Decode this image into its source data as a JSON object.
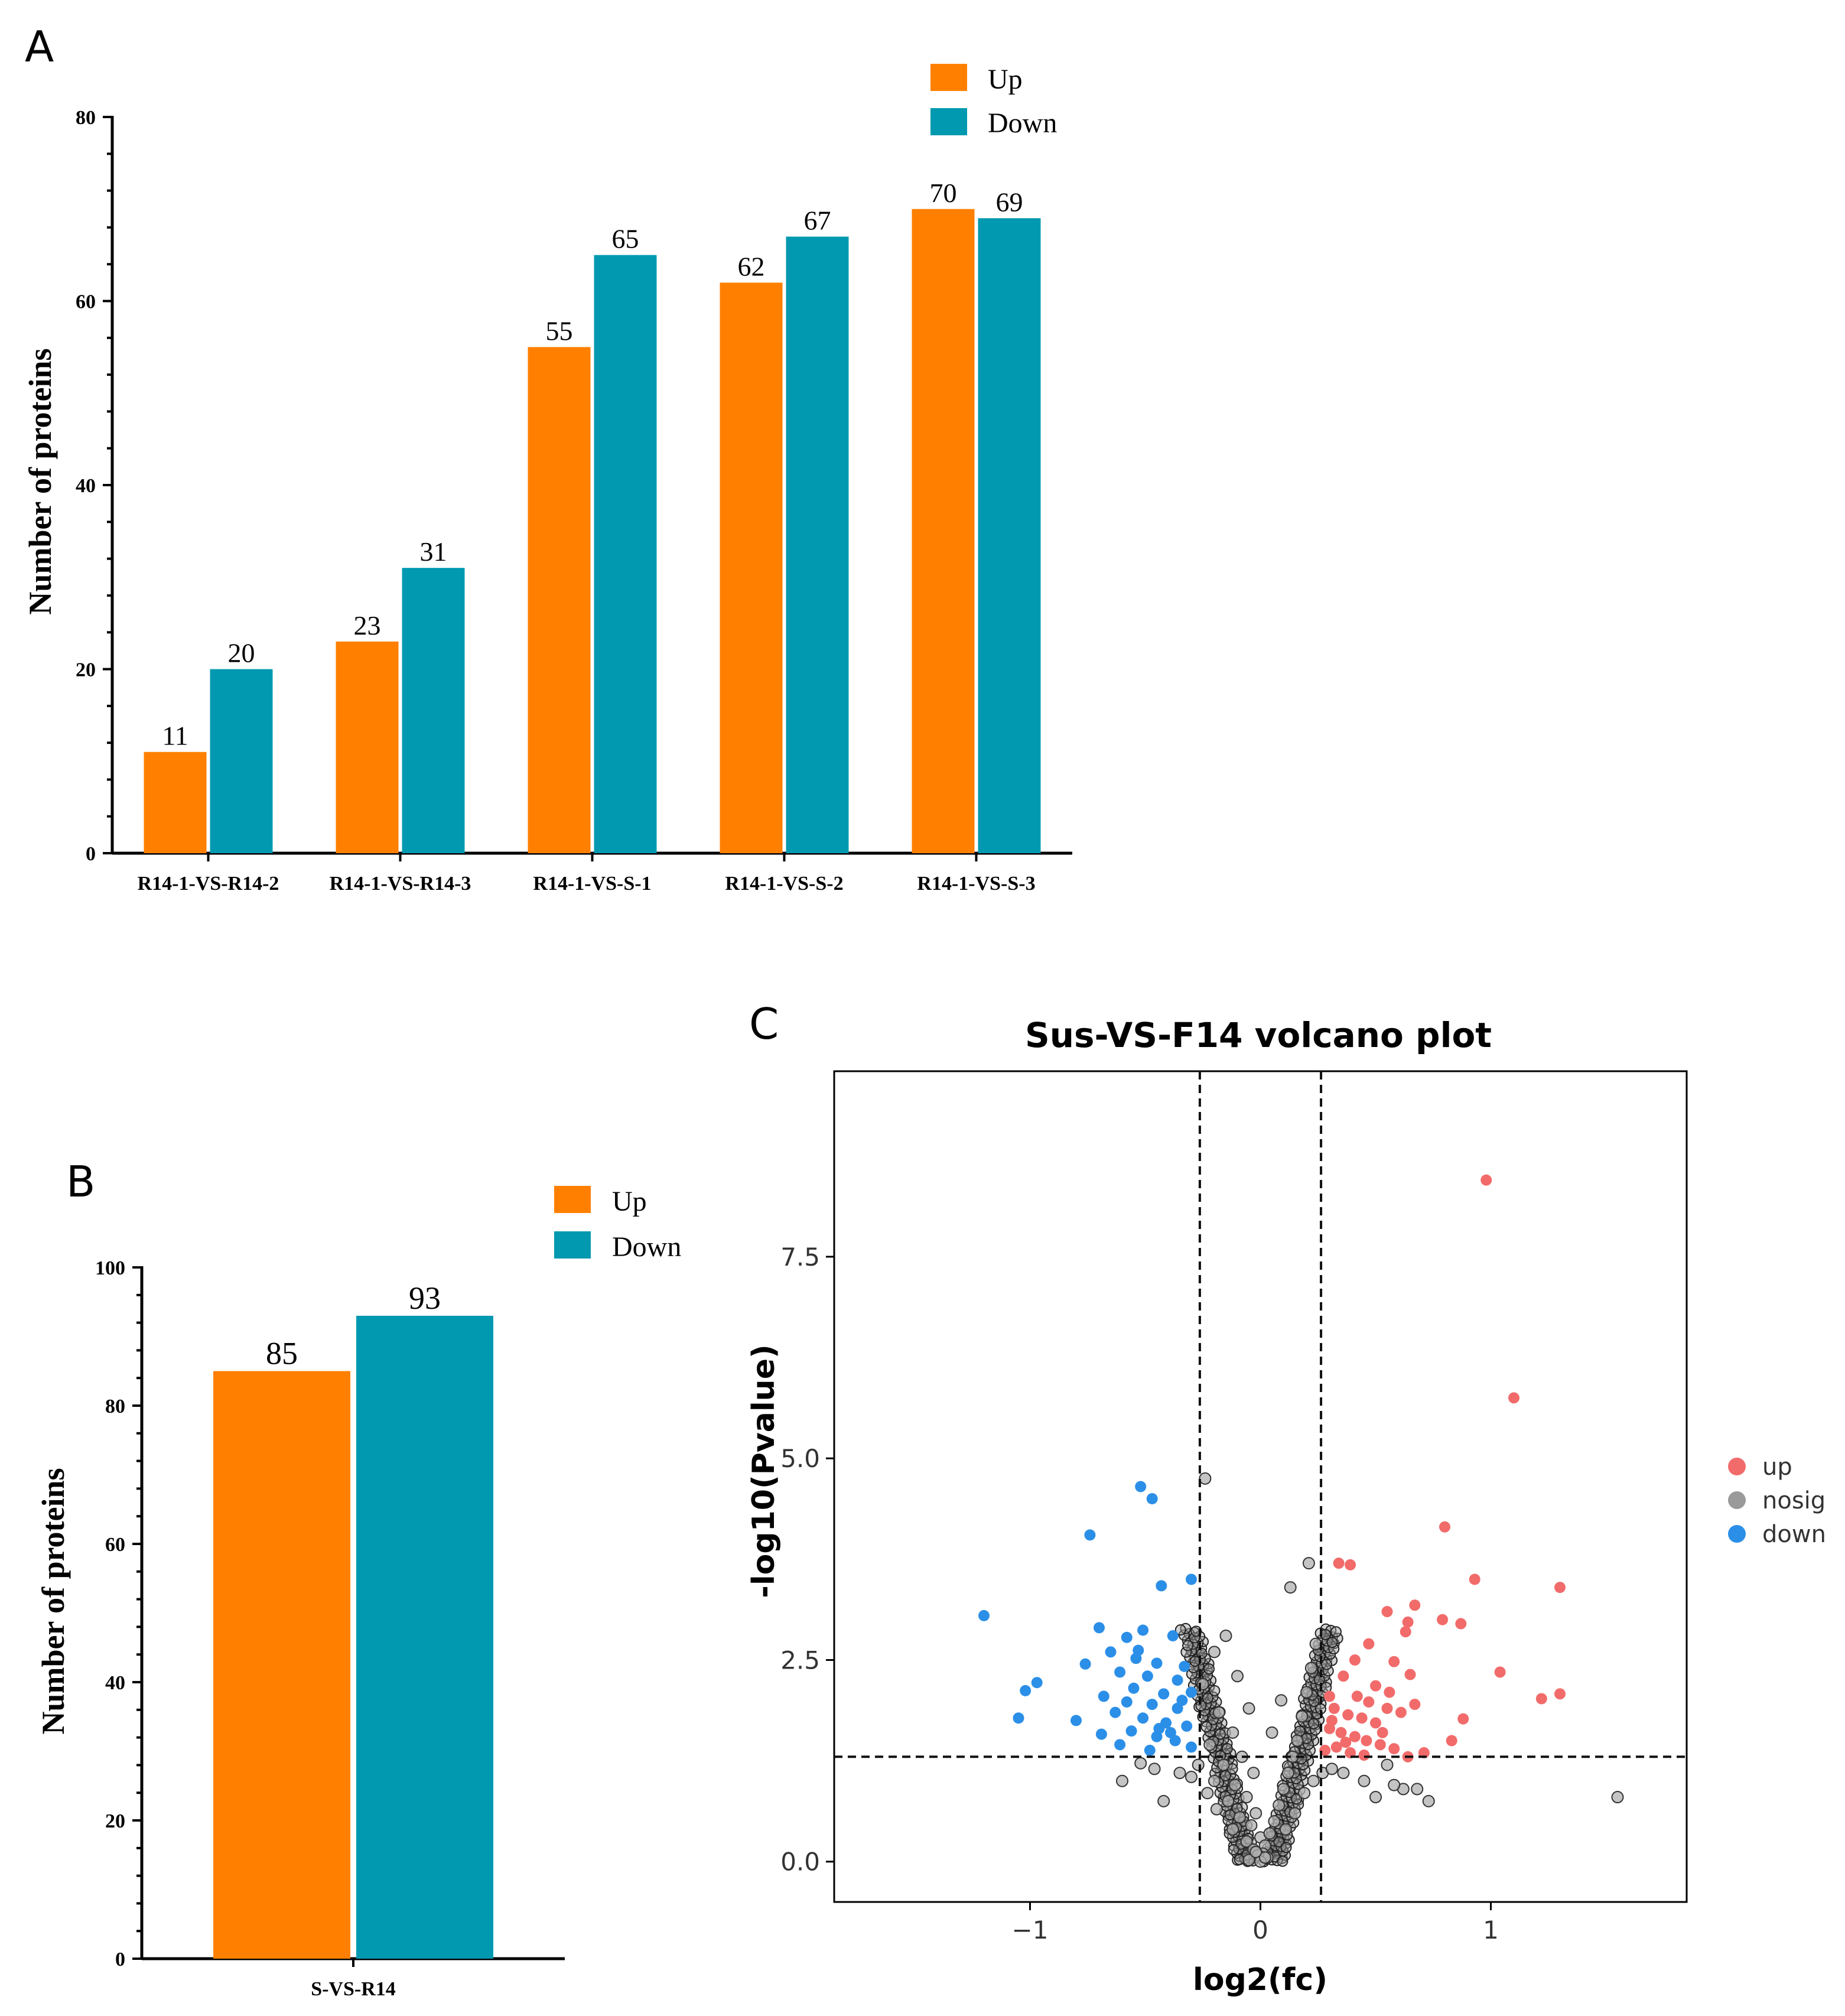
{
  "colors": {
    "up": "#FF8000",
    "down": "#0099B0",
    "volcano_up": "#F26B6B",
    "volcano_down": "#2B8FE8",
    "volcano_nosig": "#9A9A9A"
  },
  "chart_data": [
    {
      "panel": "A",
      "type": "bar",
      "title": "",
      "xlabel": "",
      "ylabel": "Number of proteins",
      "ylim": [
        0,
        80
      ],
      "yticks": [
        0,
        20,
        40,
        60,
        80
      ],
      "categories": [
        "R14-1-VS-R14-2",
        "R14-1-VS-R14-3",
        "R14-1-VS-S-1",
        "R14-1-VS-S-2",
        "R14-1-VS-S-3"
      ],
      "series": [
        {
          "name": "Up",
          "values": [
            11,
            23,
            55,
            62,
            70
          ]
        },
        {
          "name": "Down",
          "values": [
            20,
            31,
            65,
            67,
            69
          ]
        }
      ],
      "legend": "top-right"
    },
    {
      "panel": "B",
      "type": "bar",
      "title": "",
      "xlabel": "",
      "ylabel": "Number of proteins",
      "ylim": [
        0,
        100
      ],
      "yticks": [
        0,
        20,
        40,
        60,
        80,
        100
      ],
      "categories": [
        "S-VS-R14"
      ],
      "series": [
        {
          "name": "Up",
          "values": [
            85
          ]
        },
        {
          "name": "Down",
          "values": [
            93
          ]
        }
      ],
      "legend": "top-right"
    },
    {
      "panel": "C",
      "type": "scatter",
      "title": "Sus-VS-F14 volcano plot",
      "xlabel": "log2(fc)",
      "ylabel": "-log10(Pvalue)",
      "xlim": [
        -1.85,
        1.85
      ],
      "ylim": [
        -0.5,
        9.8
      ],
      "xticks": [
        -1,
        0,
        1
      ],
      "xtick_labels": [
        "−1",
        "0",
        "1"
      ],
      "yticks": [
        0.0,
        2.5,
        5.0,
        7.5
      ],
      "ytick_labels": [
        "0.0",
        "2.5",
        "5.0",
        "7.5"
      ],
      "thresholds": {
        "x": [
          -0.263,
          0.263
        ],
        "y": 1.3
      },
      "legend_entries": [
        "up",
        "nosig",
        "down"
      ],
      "legend": "right",
      "series": [
        {
          "name": "up",
          "points": [
            [
              0.98,
              8.45
            ],
            [
              1.1,
              5.75
            ],
            [
              0.8,
              4.15
            ],
            [
              0.34,
              3.7
            ],
            [
              0.39,
              3.68
            ],
            [
              0.93,
              3.5
            ],
            [
              1.3,
              3.4
            ],
            [
              0.67,
              3.18
            ],
            [
              0.55,
              3.1
            ],
            [
              0.64,
              2.97
            ],
            [
              0.79,
              3.0
            ],
            [
              0.87,
              2.95
            ],
            [
              0.63,
              2.85
            ],
            [
              0.47,
              2.7
            ],
            [
              0.41,
              2.5
            ],
            [
              0.58,
              2.48
            ],
            [
              0.65,
              2.32
            ],
            [
              1.04,
              2.35
            ],
            [
              0.36,
              2.3
            ],
            [
              0.5,
              2.18
            ],
            [
              0.56,
              2.1
            ],
            [
              1.3,
              2.08
            ],
            [
              0.3,
              2.05
            ],
            [
              0.42,
              2.05
            ],
            [
              0.47,
              1.98
            ],
            [
              1.22,
              2.02
            ],
            [
              0.67,
              1.95
            ],
            [
              0.55,
              1.9
            ],
            [
              0.61,
              1.85
            ],
            [
              0.32,
              1.9
            ],
            [
              0.38,
              1.82
            ],
            [
              0.44,
              1.78
            ],
            [
              0.88,
              1.77
            ],
            [
              0.5,
              1.72
            ],
            [
              0.3,
              1.65
            ],
            [
              0.35,
              1.6
            ],
            [
              0.41,
              1.55
            ],
            [
              0.46,
              1.5
            ],
            [
              0.52,
              1.45
            ],
            [
              0.58,
              1.4
            ],
            [
              0.71,
              1.35
            ],
            [
              0.83,
              1.5
            ],
            [
              0.64,
              1.3
            ],
            [
              0.33,
              1.42
            ],
            [
              0.39,
              1.35
            ],
            [
              0.45,
              1.32
            ],
            [
              0.28,
              1.38
            ],
            [
              0.53,
              1.6
            ],
            [
              0.31,
              1.75
            ],
            [
              0.37,
              1.48
            ]
          ]
        },
        {
          "name": "down",
          "points": [
            [
              -0.52,
              4.65
            ],
            [
              -0.47,
              4.5
            ],
            [
              -0.74,
              4.05
            ],
            [
              -0.3,
              3.5
            ],
            [
              -0.43,
              3.42
            ],
            [
              -1.2,
              3.05
            ],
            [
              -0.7,
              2.9
            ],
            [
              -0.51,
              2.87
            ],
            [
              -0.58,
              2.78
            ],
            [
              -0.38,
              2.8
            ],
            [
              -0.65,
              2.6
            ],
            [
              -0.54,
              2.52
            ],
            [
              -0.45,
              2.46
            ],
            [
              -0.76,
              2.45
            ],
            [
              -0.33,
              2.42
            ],
            [
              -0.61,
              2.35
            ],
            [
              -0.49,
              2.3
            ],
            [
              -0.36,
              2.25
            ],
            [
              -0.97,
              2.22
            ],
            [
              -1.02,
              2.12
            ],
            [
              -0.55,
              2.15
            ],
            [
              -0.68,
              2.05
            ],
            [
              -0.42,
              2.08
            ],
            [
              -0.3,
              2.1
            ],
            [
              -0.58,
              1.98
            ],
            [
              -0.47,
              1.95
            ],
            [
              -0.36,
              1.9
            ],
            [
              -0.63,
              1.85
            ],
            [
              -0.51,
              1.78
            ],
            [
              -1.05,
              1.78
            ],
            [
              -0.8,
              1.75
            ],
            [
              -0.41,
              1.72
            ],
            [
              -0.32,
              1.68
            ],
            [
              -0.56,
              1.62
            ],
            [
              -0.69,
              1.58
            ],
            [
              -0.45,
              1.55
            ],
            [
              -0.37,
              1.5
            ],
            [
              -0.61,
              1.45
            ],
            [
              -0.3,
              1.42
            ],
            [
              -0.48,
              1.38
            ],
            [
              -0.53,
              2.62
            ],
            [
              -0.44,
              1.65
            ],
            [
              -0.34,
              2.0
            ],
            [
              -0.39,
              1.6
            ]
          ]
        },
        {
          "name": "nosig",
          "points": [
            [
              -0.24,
              4.75
            ],
            [
              -0.15,
              2.8
            ],
            [
              -0.2,
              2.6
            ],
            [
              -0.1,
              2.3
            ],
            [
              -0.25,
              2.2
            ],
            [
              -0.05,
              1.9
            ],
            [
              -0.18,
              1.85
            ],
            [
              -0.12,
              1.6
            ],
            [
              -0.22,
              1.45
            ],
            [
              -0.08,
              1.3
            ],
            [
              -0.16,
              1.2
            ],
            [
              -0.03,
              1.1
            ],
            [
              -0.2,
              1.0
            ],
            [
              -0.11,
              0.95
            ],
            [
              -0.06,
              0.8
            ],
            [
              -0.14,
              0.75
            ],
            [
              -0.02,
              0.6
            ],
            [
              -0.09,
              0.55
            ],
            [
              -0.04,
              0.45
            ],
            [
              -0.12,
              0.4
            ],
            [
              0.0,
              0.3
            ],
            [
              -0.06,
              0.25
            ],
            [
              0.02,
              0.2
            ],
            [
              -0.03,
              0.15
            ],
            [
              0.01,
              0.1
            ],
            [
              0.03,
              0.05
            ],
            [
              -0.01,
              0.08
            ],
            [
              0.04,
              0.35
            ],
            [
              0.06,
              0.5
            ],
            [
              0.08,
              0.7
            ],
            [
              0.1,
              0.9
            ],
            [
              0.12,
              1.1
            ],
            [
              0.14,
              1.3
            ],
            [
              0.16,
              1.5
            ],
            [
              0.18,
              1.8
            ],
            [
              0.2,
              2.1
            ],
            [
              0.22,
              2.4
            ],
            [
              0.24,
              2.7
            ],
            [
              0.13,
              3.4
            ],
            [
              0.21,
              3.7
            ],
            [
              0.09,
              2.0
            ],
            [
              0.05,
              1.6
            ],
            [
              0.15,
              0.6
            ],
            [
              0.19,
              0.85
            ],
            [
              0.23,
              1.0
            ],
            [
              0.11,
              0.4
            ],
            [
              -0.19,
              0.65
            ],
            [
              -0.23,
              0.85
            ],
            [
              -0.27,
              1.2
            ],
            [
              0.27,
              1.1
            ],
            [
              -0.3,
              1.05
            ],
            [
              0.31,
              1.15
            ],
            [
              -0.35,
              1.1
            ],
            [
              0.36,
              1.1
            ],
            [
              -0.52,
              1.22
            ],
            [
              -0.46,
              1.15
            ],
            [
              -0.6,
              1.0
            ],
            [
              -0.42,
              0.75
            ],
            [
              0.45,
              1.0
            ],
            [
              0.5,
              0.8
            ],
            [
              0.62,
              0.9
            ],
            [
              0.58,
              0.95
            ],
            [
              0.68,
              0.9
            ],
            [
              0.73,
              0.75
            ],
            [
              1.55,
              0.8
            ],
            [
              0.55,
              1.2
            ],
            [
              -0.05,
              0.02
            ],
            [
              0.0,
              0.0
            ],
            [
              0.02,
              0.05
            ],
            [
              -0.02,
              0.12
            ]
          ]
        }
      ]
    }
  ],
  "panels": {
    "A": {
      "label": "A",
      "legend_up": "Up",
      "legend_down": "Down"
    },
    "B": {
      "label": "B",
      "legend_up": "Up",
      "legend_down": "Down"
    },
    "C": {
      "label": "C"
    }
  }
}
